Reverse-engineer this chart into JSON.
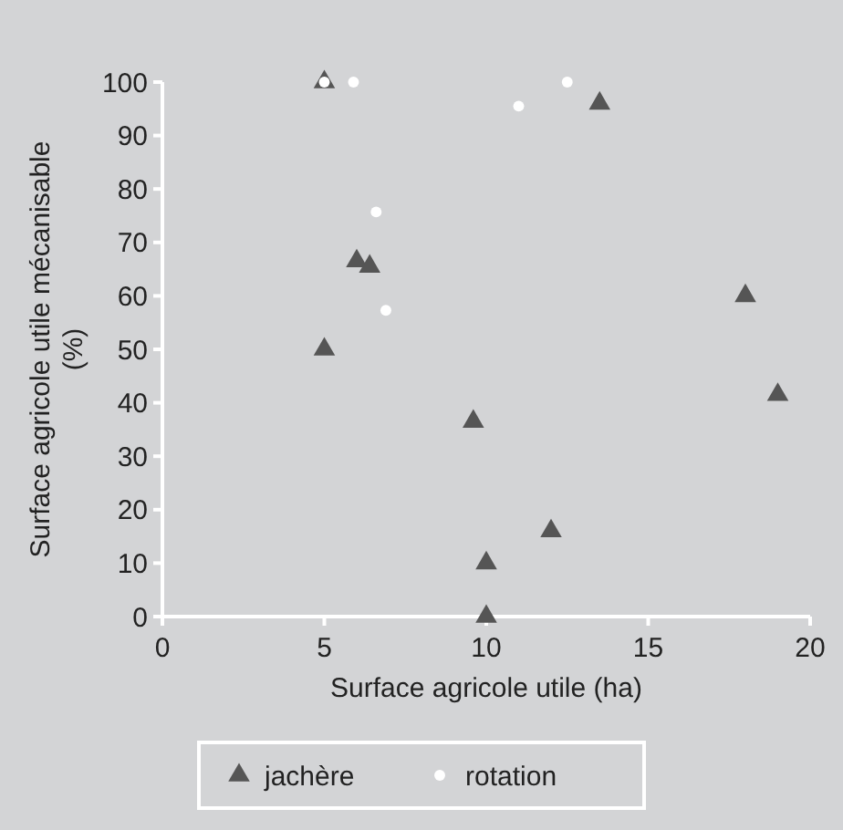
{
  "chart_data": {
    "type": "scatter",
    "xlabel": "Surface agricole utile (ha)",
    "ylabel": "Surface agricole utile mécanisable (%)",
    "xlim": [
      0,
      20
    ],
    "xticks": [
      0,
      5,
      10,
      15,
      20
    ],
    "ylim": [
      0,
      100
    ],
    "yticks": [
      0,
      10,
      20,
      30,
      40,
      50,
      60,
      70,
      80,
      90,
      100
    ],
    "grid": false,
    "legend": "bottom",
    "series": [
      {
        "name": "jachère",
        "color": "#555555",
        "marker": "triangle",
        "x": [
          5,
          6,
          6.4,
          5,
          9.6,
          10,
          10,
          12,
          13.5,
          18,
          19
        ],
        "values": [
          100,
          66.5,
          65.5,
          50,
          36.5,
          10,
          0,
          16,
          96,
          60,
          41.5
        ]
      },
      {
        "name": "rotation",
        "color": "#ffffff",
        "marker": "circle",
        "x": [
          5,
          5.9,
          6.6,
          6.9,
          11,
          12.5
        ],
        "values": [
          100,
          100,
          75.7,
          57.3,
          95.5,
          100
        ]
      }
    ]
  }
}
